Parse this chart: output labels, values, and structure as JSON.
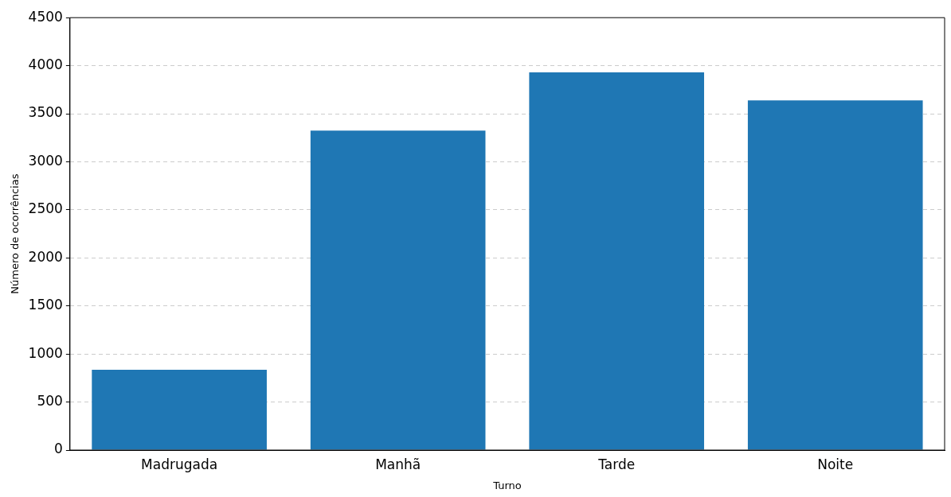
{
  "chart_data": {
    "type": "bar",
    "xlabel": "Turno",
    "ylabel": "Número de ocorrências",
    "categories": [
      "Madrugada",
      "Manhã",
      "Tarde",
      "Noite"
    ],
    "values": [
      835,
      3325,
      3930,
      3640
    ],
    "color": "#1f77b4",
    "ylim": [
      0,
      4500
    ],
    "yticks": [
      0,
      500,
      1000,
      1500,
      2000,
      2500,
      3000,
      3500,
      4000,
      4500
    ],
    "grid": "y",
    "legend": false
  }
}
